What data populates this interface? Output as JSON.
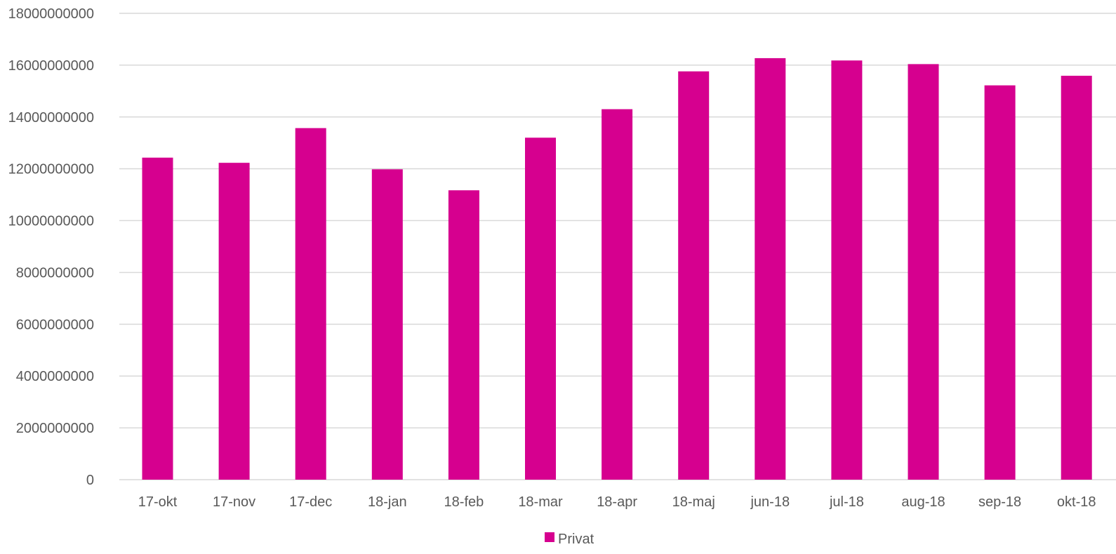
{
  "chart_data": {
    "type": "bar",
    "title": "",
    "xlabel": "",
    "ylabel": "",
    "categories": [
      "17-okt",
      "17-nov",
      "17-dec",
      "18-jan",
      "18-feb",
      "18-mar",
      "18-apr",
      "18-maj",
      "jun-18",
      "jul-18",
      "aug-18",
      "sep-18",
      "okt-18"
    ],
    "series": [
      {
        "name": "Privat",
        "color": "#d6008f",
        "values": [
          12430000000,
          12230000000,
          13570000000,
          11980000000,
          11170000000,
          13200000000,
          14300000000,
          15760000000,
          16270000000,
          16180000000,
          16040000000,
          15220000000,
          15590000000
        ]
      }
    ],
    "ylim": [
      0,
      18000000000
    ],
    "yticks": [
      0,
      2000000000,
      4000000000,
      6000000000,
      8000000000,
      10000000000,
      12000000000,
      14000000000,
      16000000000,
      18000000000
    ],
    "ytick_labels": [
      "0",
      "2000000000",
      "4000000000",
      "6000000000",
      "8000000000",
      "10000000000",
      "12000000000",
      "14000000000",
      "16000000000",
      "18000000000"
    ],
    "grid": true,
    "legend_position": "bottom"
  }
}
